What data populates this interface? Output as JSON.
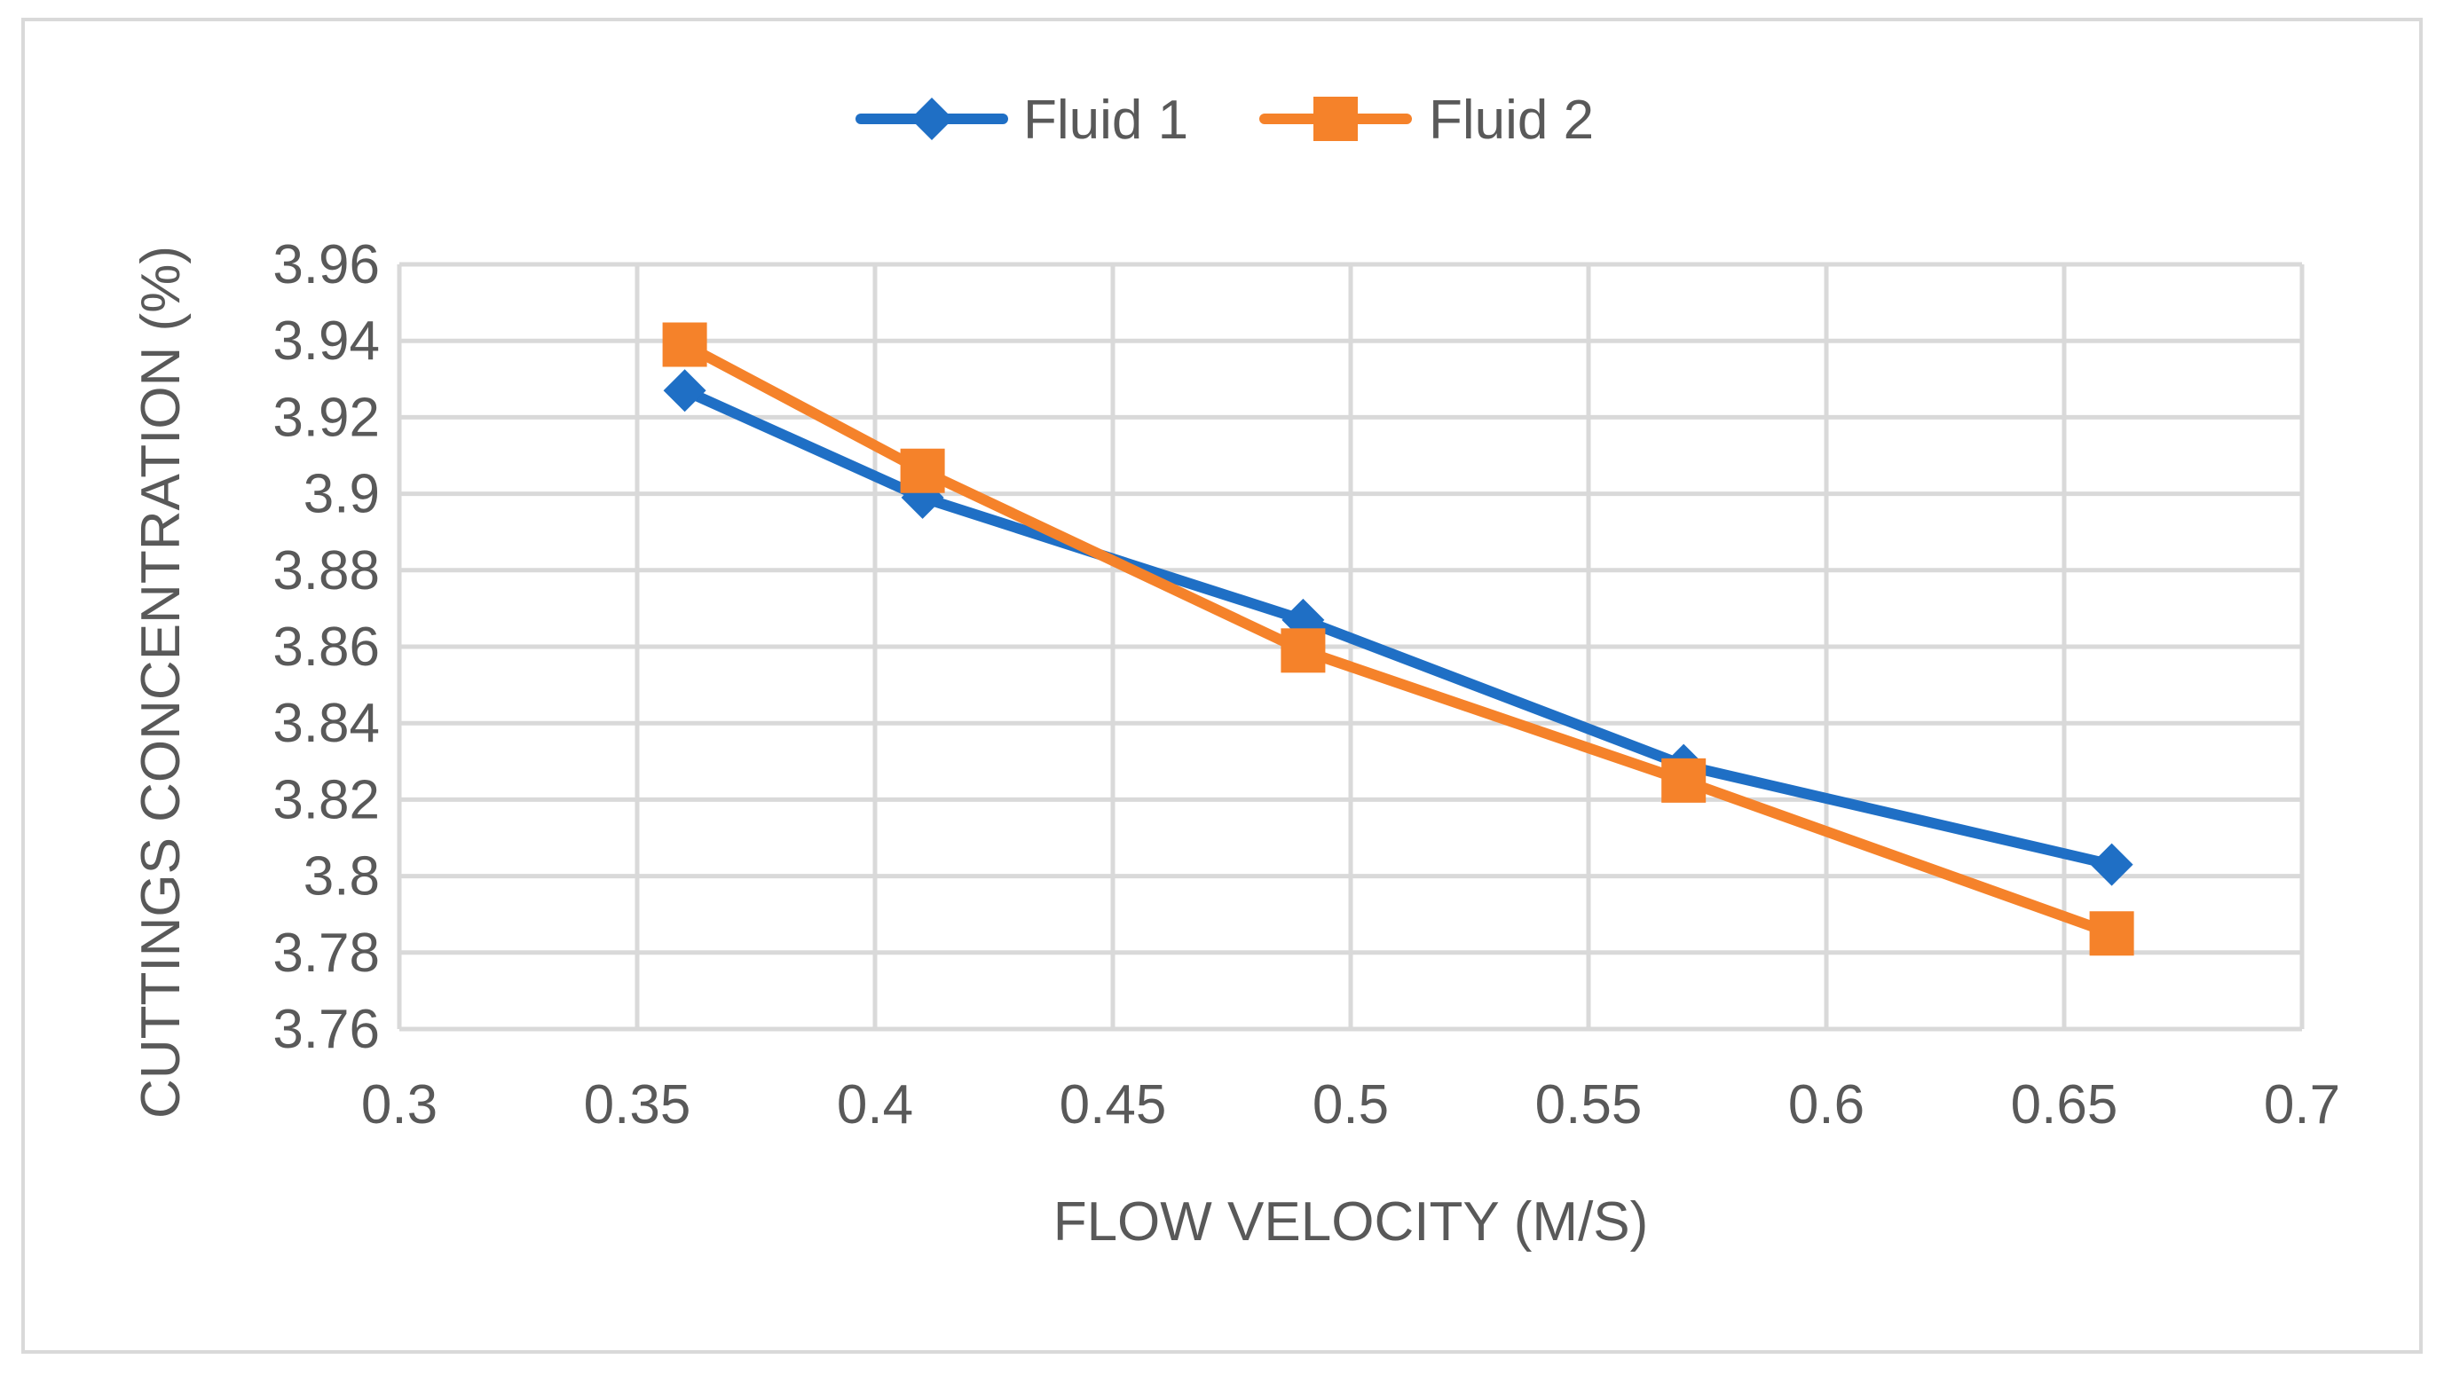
{
  "chart_data": {
    "type": "line",
    "title": "",
    "xlabel": "FLOW VELOCITY (M/S)",
    "ylabel": "CUTTINGS CONCENTRATION (%)",
    "xlim": [
      0.3,
      0.7
    ],
    "ylim": [
      3.76,
      3.96
    ],
    "x_ticks": [
      0.3,
      0.35,
      0.4,
      0.45,
      0.5,
      0.55,
      0.6,
      0.65,
      0.7
    ],
    "x_tick_labels": [
      "0.3",
      "0.35",
      "0.4",
      "0.45",
      "0.5",
      "0.55",
      "0.6",
      "0.65",
      "0.7"
    ],
    "y_ticks": [
      3.76,
      3.78,
      3.8,
      3.82,
      3.84,
      3.86,
      3.88,
      3.9,
      3.92,
      3.94,
      3.96
    ],
    "y_tick_labels": [
      "3.76",
      "3.78",
      "3.8",
      "3.82",
      "3.84",
      "3.86",
      "3.88",
      "3.9",
      "3.92",
      "3.94",
      "3.96"
    ],
    "grid": true,
    "legend_position": "top-center",
    "series": [
      {
        "name": "Fluid 1",
        "color": "#1f6fc5",
        "marker": "diamond",
        "x": [
          0.36,
          0.41,
          0.49,
          0.57,
          0.66
        ],
        "y": [
          3.927,
          3.899,
          3.867,
          3.829,
          3.803
        ]
      },
      {
        "name": "Fluid 2",
        "color": "#f5822a",
        "marker": "square",
        "x": [
          0.36,
          0.41,
          0.49,
          0.57,
          0.66
        ],
        "y": [
          3.939,
          3.906,
          3.859,
          3.825,
          3.785
        ]
      }
    ]
  }
}
